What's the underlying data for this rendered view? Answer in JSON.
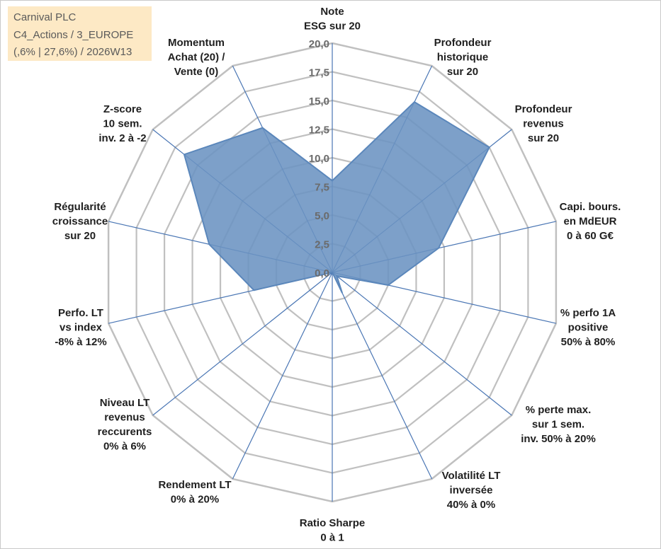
{
  "info": {
    "line1": "Carnival PLC",
    "line2": "C4_Actions / 3_EUROPE",
    "line3": "(,6% | 27,6%) / 2026W13"
  },
  "chart_data": {
    "type": "radar",
    "title": "",
    "rlim": [
      0,
      20
    ],
    "ticks": [
      "0,0",
      "2,5",
      "5,0",
      "7,5",
      "10,0",
      "12,5",
      "15,0",
      "17,5",
      "20,0"
    ],
    "tick_values": [
      0,
      2.5,
      5,
      7.5,
      10,
      12.5,
      15,
      17.5,
      20
    ],
    "axes": [
      [
        "Note",
        "ESG sur 20"
      ],
      [
        "Profondeur",
        "historique",
        "sur 20"
      ],
      [
        "Profondeur",
        "revenus",
        "sur 20"
      ],
      [
        "Capi. bours.",
        "en MdEUR",
        "0 à 60 G€"
      ],
      [
        "% perfo 1A",
        "positive",
        "50% à 80%"
      ],
      [
        "% perte max.",
        "sur 1 sem.",
        "inv. 50% à 20%"
      ],
      [
        "Volatilité LT",
        "inversée",
        "40% à 0%"
      ],
      [
        "Ratio Sharpe",
        "0 à 1"
      ],
      [
        "Rendement LT",
        "0% à 20%"
      ],
      [
        "Niveau LT",
        "revenus",
        "reccurents",
        "0% à 6%"
      ],
      [
        "Perfo. LT",
        "vs index",
        "-8% à 12%"
      ],
      [
        "Régularité",
        "croissance",
        "sur 20"
      ],
      [
        "Z-score",
        "10 sem.",
        "inv. 2 à -2"
      ],
      [
        "Momentum",
        "Achat (20) /",
        "Vente (0)"
      ]
    ],
    "series": [
      {
        "values": [
          8,
          16.5,
          17.5,
          9.5,
          5,
          0.5,
          2,
          0,
          0,
          0,
          7,
          11,
          16.5,
          14
        ],
        "color": "#5b87bb"
      }
    ],
    "grid": true,
    "legend": "none",
    "colors": {
      "fill": "#6b93c2",
      "stroke": "#5b87bb",
      "grid": "#c0c0c0",
      "spoke": "#4a76b4",
      "label": "#1f1f1f",
      "tick": "#6b6b6b"
    }
  }
}
